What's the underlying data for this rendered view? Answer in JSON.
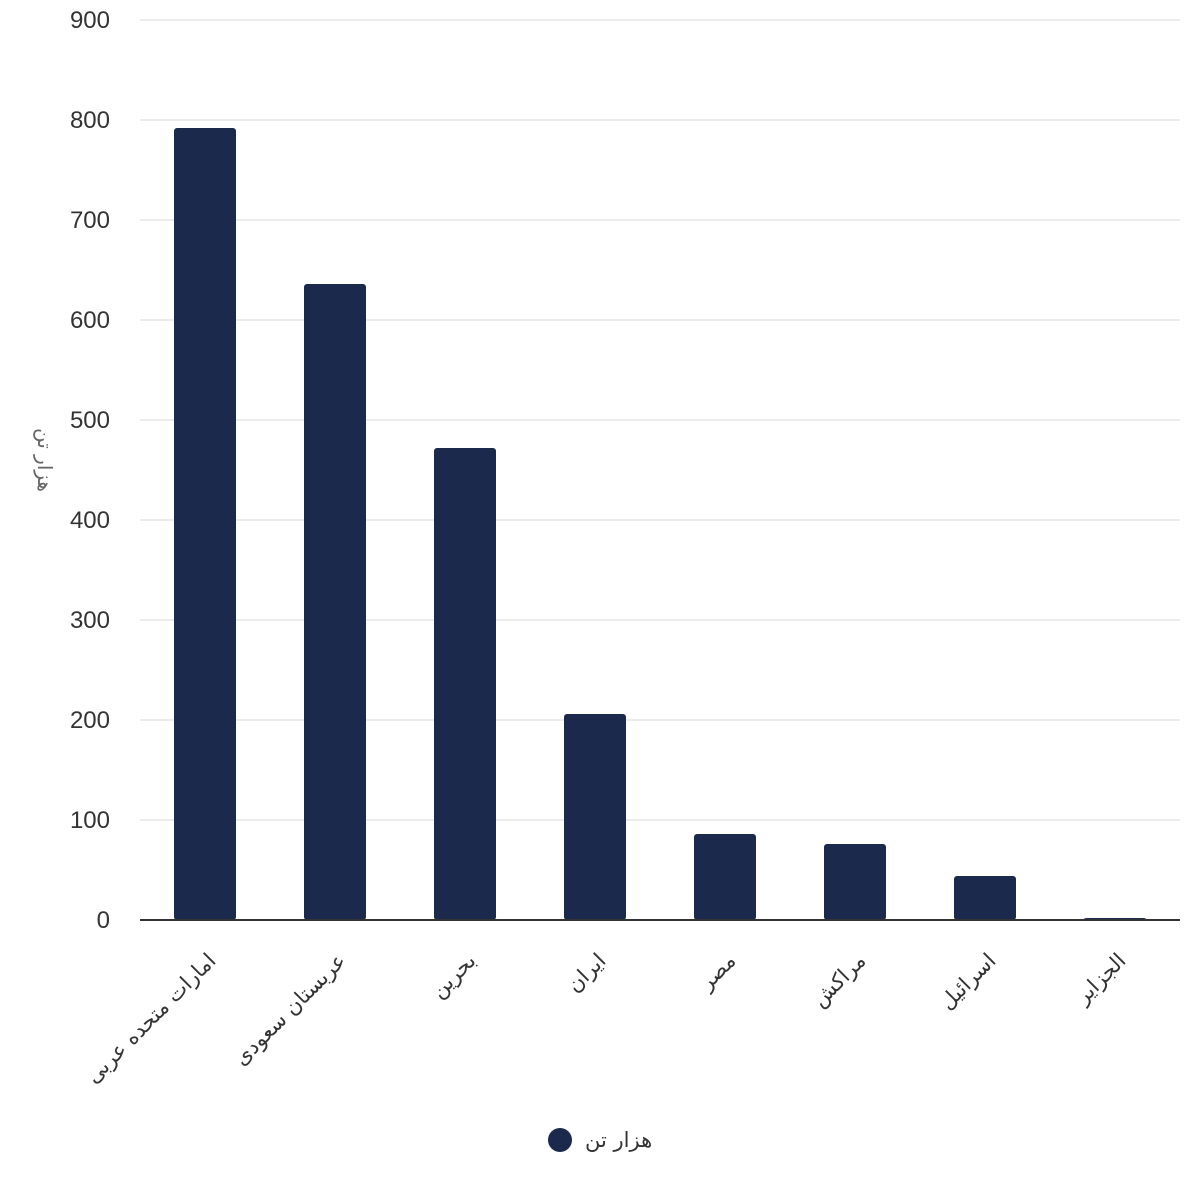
{
  "chart_data": {
    "type": "bar",
    "categories": [
      "امارات متحده عربی",
      "عربستان سعودی",
      "بحرین",
      "ایران",
      "مصر",
      "مراکش",
      "اسرائیل",
      "الجزایر"
    ],
    "series": [
      {
        "name": "هزار تن",
        "values": [
          792,
          636,
          472,
          206,
          86,
          76,
          44,
          2
        ]
      }
    ],
    "title": "",
    "xlabel": "",
    "ylabel": "هزار تن",
    "ylim": [
      0,
      900
    ],
    "yticks": [
      0,
      100,
      200,
      300,
      400,
      500,
      600,
      700,
      800,
      900
    ],
    "grid": true,
    "legend": "bottom-center"
  },
  "colors": {
    "bar": "#1b2a4c",
    "grid": "#e6e6e6",
    "axis": "#333333"
  }
}
